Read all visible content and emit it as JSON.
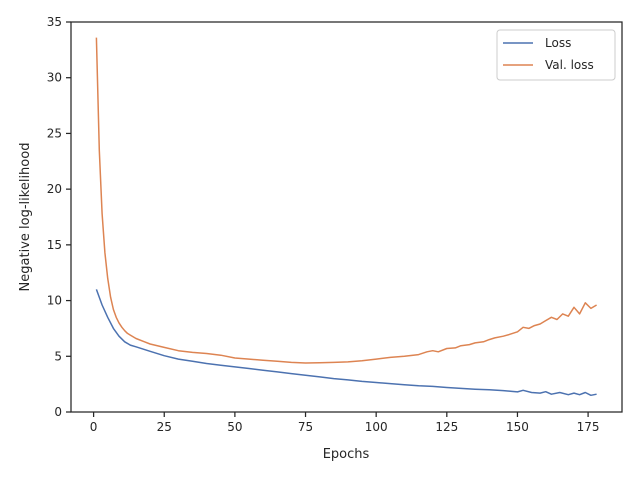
{
  "chart_data": {
    "type": "line",
    "title": "",
    "xlabel": "Epochs",
    "ylabel": "Negative log-likelihood",
    "xlim": [
      -8,
      187
    ],
    "ylim": [
      0,
      35
    ],
    "xticks": [
      0,
      25,
      50,
      75,
      100,
      125,
      150,
      175
    ],
    "yticks": [
      0,
      5,
      10,
      15,
      20,
      25,
      30,
      35
    ],
    "grid": false,
    "legend_position": "top-right",
    "series": [
      {
        "name": "Loss",
        "color": "#4c72b0",
        "x": [
          1,
          3,
          5,
          7,
          9,
          11,
          13,
          15,
          20,
          25,
          30,
          35,
          40,
          45,
          50,
          55,
          60,
          65,
          70,
          75,
          80,
          85,
          90,
          95,
          100,
          105,
          110,
          115,
          120,
          125,
          130,
          135,
          140,
          145,
          148,
          150,
          152,
          155,
          158,
          160,
          162,
          165,
          168,
          170,
          172,
          174,
          176,
          178
        ],
        "y": [
          11.0,
          9.6,
          8.5,
          7.5,
          6.8,
          6.3,
          6.0,
          5.85,
          5.45,
          5.05,
          4.75,
          4.55,
          4.35,
          4.2,
          4.05,
          3.9,
          3.75,
          3.6,
          3.45,
          3.3,
          3.15,
          3.0,
          2.88,
          2.75,
          2.65,
          2.55,
          2.45,
          2.35,
          2.3,
          2.2,
          2.12,
          2.05,
          2.0,
          1.92,
          1.85,
          1.8,
          1.95,
          1.75,
          1.7,
          1.82,
          1.6,
          1.75,
          1.55,
          1.7,
          1.55,
          1.75,
          1.5,
          1.6
        ]
      },
      {
        "name": "Val. loss",
        "color": "#dd8452",
        "x": [
          1,
          2,
          3,
          4,
          5,
          6,
          7,
          8,
          9,
          10,
          11,
          12,
          13,
          15,
          18,
          20,
          25,
          30,
          35,
          40,
          45,
          50,
          55,
          60,
          65,
          70,
          75,
          80,
          85,
          90,
          95,
          100,
          105,
          110,
          115,
          118,
          120,
          122,
          125,
          128,
          130,
          133,
          135,
          138,
          140,
          142,
          145,
          147,
          150,
          152,
          154,
          156,
          158,
          160,
          162,
          164,
          166,
          168,
          170,
          172,
          174,
          176,
          178
        ],
        "y": [
          33.6,
          23.5,
          17.8,
          14.3,
          12.0,
          10.3,
          9.2,
          8.5,
          8.0,
          7.6,
          7.3,
          7.05,
          6.9,
          6.6,
          6.3,
          6.1,
          5.8,
          5.5,
          5.35,
          5.25,
          5.1,
          4.85,
          4.75,
          4.65,
          4.55,
          4.45,
          4.4,
          4.42,
          4.45,
          4.5,
          4.6,
          4.75,
          4.9,
          5.0,
          5.15,
          5.4,
          5.5,
          5.4,
          5.7,
          5.75,
          5.95,
          6.05,
          6.2,
          6.3,
          6.5,
          6.65,
          6.8,
          6.95,
          7.2,
          7.6,
          7.5,
          7.75,
          7.9,
          8.2,
          8.5,
          8.3,
          8.8,
          8.6,
          9.4,
          8.8,
          9.8,
          9.3,
          9.6
        ]
      }
    ]
  }
}
